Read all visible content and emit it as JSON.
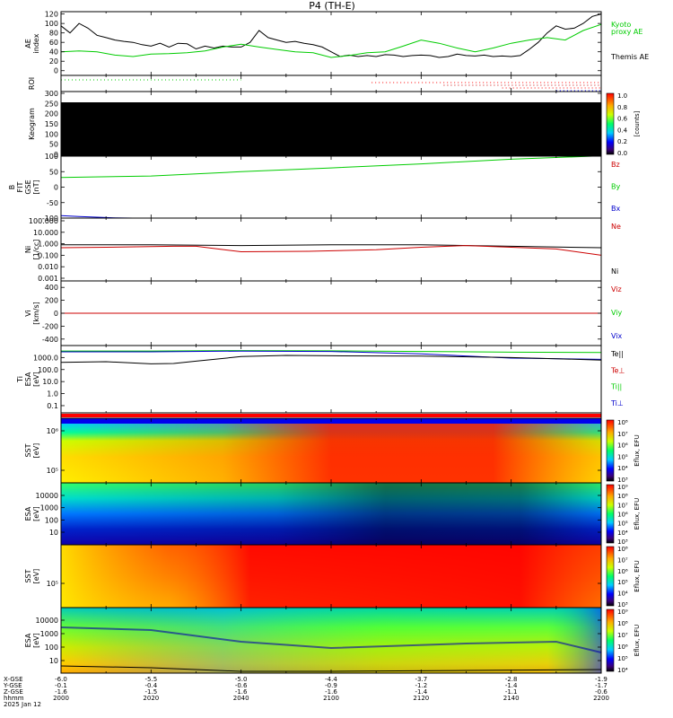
{
  "title": "P4 (TH-E)",
  "chart_data": {
    "type": "multi-panel",
    "xaxis": {
      "ticks": [
        {
          "hhmm": "2000",
          "x": "-6.0",
          "y": "-0.1",
          "z": "-1.6"
        },
        {
          "hhmm": "2020",
          "x": "-5.5",
          "y": "-0.4",
          "z": "-1.5"
        },
        {
          "hhmm": "2040",
          "x": "-5.0",
          "y": "-0.6",
          "z": "-1.6"
        },
        {
          "hhmm": "2100",
          "x": "-4.4",
          "y": "-0.9",
          "z": "-1.6"
        },
        {
          "hhmm": "2120",
          "x": "-3.7",
          "y": "-1.2",
          "z": "-1.4"
        },
        {
          "hhmm": "2140",
          "x": "-2.8",
          "y": "-1.4",
          "z": "-1.1"
        },
        {
          "hhmm": "2200",
          "x": "-1.9",
          "y": "-1.7",
          "z": "-0.6"
        }
      ],
      "row_labels": [
        "X-GSE",
        "Y-GSE",
        "Z-GSE",
        "hhmm"
      ],
      "date": "2025 Jan 12"
    },
    "panels": [
      {
        "id": "ae",
        "ylabel": "AE index",
        "yticks": [
          "120",
          "100",
          "80",
          "60",
          "40",
          "20",
          "0"
        ],
        "ylim": [
          -10,
          125
        ],
        "legend": [
          {
            "text": "Kyoto",
            "color": "#00cc00"
          },
          {
            "text": "proxy AE",
            "color": "#00cc00"
          },
          {
            "text": "Themis AE",
            "color": "#000000"
          }
        ],
        "series": [
          {
            "color": "#000000",
            "x": [
              0,
              2,
              4,
              6,
              8,
              10,
              12,
              14,
              16,
              18,
              20,
              22,
              24,
              26,
              28,
              30,
              32,
              34,
              36,
              38,
              40,
              42,
              44,
              46,
              48,
              50,
              52,
              54,
              56,
              58,
              60,
              62,
              64,
              66,
              68,
              70,
              72,
              74,
              76,
              78,
              80,
              82,
              84,
              86,
              88,
              90,
              92,
              94,
              96,
              98,
              100,
              102,
              104,
              106,
              108,
              110,
              112,
              114,
              116,
              118,
              120
            ],
            "y": [
              95,
              80,
              100,
              90,
              75,
              70,
              65,
              62,
              60,
              55,
              52,
              58,
              50,
              58,
              57,
              46,
              52,
              48,
              52,
              50,
              50,
              60,
              85,
              70,
              65,
              60,
              62,
              58,
              55,
              50,
              40,
              30,
              33,
              30,
              32,
              30,
              34,
              33,
              30,
              32,
              33,
              32,
              28,
              30,
              35,
              32,
              31,
              33,
              30,
              31,
              30,
              32,
              45,
              60,
              80,
              95,
              88,
              90,
              100,
              115,
              120
            ]
          },
          {
            "color": "#00cc00",
            "x": [
              0,
              4,
              8,
              12,
              16,
              20,
              24,
              28,
              32,
              36,
              40,
              44,
              48,
              52,
              56,
              60,
              64,
              68,
              72,
              76,
              80,
              84,
              88,
              92,
              96,
              100,
              104,
              108,
              112,
              116,
              120
            ],
            "y": [
              40,
              42,
              40,
              33,
              30,
              35,
              36,
              38,
              42,
              50,
              56,
              50,
              45,
              40,
              38,
              28,
              32,
              38,
              40,
              52,
              65,
              58,
              48,
              40,
              48,
              58,
              65,
              70,
              65,
              85,
              98
            ]
          }
        ]
      },
      {
        "id": "roi",
        "ylabel": "ROI",
        "dot_rows": [
          {
            "color": "#00cc00",
            "start": 0,
            "end": 40
          },
          {
            "color": "#ff0000",
            "start": 69,
            "end": 120
          },
          {
            "color": "#cc0000",
            "start": 85,
            "end": 120
          },
          {
            "color": "#ff0000",
            "start": 98,
            "end": 120
          },
          {
            "color": "#0000ff",
            "start": 110,
            "end": 120
          }
        ]
      },
      {
        "id": "keogram",
        "ylabel": "Keogram",
        "yticks": [
          "300",
          "250",
          "200",
          "150",
          "100",
          "50",
          "0"
        ],
        "colorbar": {
          "label": "[counts]",
          "ticks": [
            "1.0",
            "0.8",
            "0.6",
            "0.4",
            "0.2",
            "0.0"
          ]
        }
      },
      {
        "id": "bfield",
        "ylabel": "B FIT GSE [nT]",
        "yticks": [
          "100",
          "50",
          "0",
          "-50",
          "-100"
        ],
        "ylim": [
          -100,
          100
        ],
        "legend": [
          {
            "text": "Bz",
            "color": "#cc0000"
          },
          {
            "text": "By",
            "color": "#00cc00"
          },
          {
            "text": "Bx",
            "color": "#0000cc"
          }
        ],
        "series": [
          {
            "color": "#00cc00",
            "x": [
              0,
              20,
              40,
              60,
              80,
              100,
              118
            ],
            "y": [
              31,
              36,
              50,
              62,
              75,
              90,
              100
            ]
          },
          {
            "color": "#0000cc",
            "x": [
              0,
              4,
              8,
              12,
              16,
              18
            ],
            "y": [
              -92,
              -95,
              -97,
              -99,
              -100,
              -101
            ]
          }
        ]
      },
      {
        "id": "density",
        "ylabel": "Ni [1/cc]",
        "yticks": [
          "100.000",
          "10.000",
          "1.000",
          "0.100",
          "0.010",
          "0.001"
        ],
        "log": true,
        "legend": [
          {
            "text": "Ne",
            "color": "#cc0000"
          },
          {
            "text": "Ni",
            "color": "#000000"
          }
        ],
        "series": [
          {
            "color": "#000000",
            "x": [
              0,
              20,
              40,
              60,
              80,
              100,
              120
            ],
            "y": [
              0.8,
              0.8,
              0.7,
              0.8,
              0.8,
              0.6,
              0.45
            ]
          },
          {
            "color": "#cc0000",
            "x": [
              0,
              10,
              25,
              30,
              40,
              55,
              70,
              80,
              90,
              100,
              110,
              120
            ],
            "y": [
              0.45,
              0.5,
              0.6,
              0.6,
              0.2,
              0.22,
              0.3,
              0.5,
              0.7,
              0.5,
              0.35,
              0.1
            ]
          }
        ]
      },
      {
        "id": "velocity",
        "ylabel": "Vi [km/s]",
        "yticks": [
          "400",
          "200",
          "0",
          "-200",
          "-400"
        ],
        "ylim": [
          -500,
          500
        ],
        "legend": [
          {
            "text": "Viz",
            "color": "#cc0000"
          },
          {
            "text": "Viy",
            "color": "#00cc00"
          },
          {
            "text": "Vix",
            "color": "#0000cc"
          }
        ],
        "series": [
          {
            "color": "#cc0000",
            "x": [
              0,
              120
            ],
            "y": [
              0,
              0
            ]
          }
        ]
      },
      {
        "id": "temperature",
        "ylabel": "Ti ESA [eV]",
        "yticks": [
          "1000.0",
          "100.0",
          "10.0",
          "1.0",
          "0.1"
        ],
        "log": true,
        "legend": [
          {
            "text": "Te||",
            "color": "#000000"
          },
          {
            "text": "Te⊥",
            "color": "#cc0000"
          },
          {
            "text": "Ti||",
            "color": "#00cc00"
          },
          {
            "text": "Ti⊥",
            "color": "#0000cc"
          }
        ],
        "series": [
          {
            "color": "#00cc00",
            "x": [
              0,
              20,
              40,
              60,
              80,
              100,
              120
            ],
            "y": [
              3500,
              3500,
              3800,
              3600,
              3200,
              2800,
              2600
            ]
          },
          {
            "color": "#0000cc",
            "x": [
              0,
              20,
              40,
              60,
              80,
              100,
              120
            ],
            "y": [
              3000,
              3000,
              3400,
              3200,
              2000,
              900,
              700
            ]
          },
          {
            "color": "#000000",
            "x": [
              0,
              10,
              20,
              25,
              30,
              40,
              50,
              60,
              80,
              100,
              110,
              120
            ],
            "y": [
              400,
              450,
              300,
              320,
              500,
              1200,
              1500,
              1400,
              1300,
              1000,
              800,
              600
            ]
          }
        ]
      },
      {
        "id": "flagbar"
      },
      {
        "id": "sst_ion",
        "ylabel": "SST [eV]",
        "yticks": [
          "10⁶",
          "10⁵"
        ],
        "colorbar": {
          "label": "Eflux, EFU",
          "ticks": [
            "10⁸",
            "10⁷",
            "10⁶",
            "10⁵",
            "10⁴",
            "10³"
          ]
        }
      },
      {
        "id": "esa_ion",
        "ylabel": "ESA [eV]",
        "yticks": [
          "10000",
          "1000",
          "100",
          "10"
        ],
        "colorbar": {
          "label": "Eflux, EFU",
          "ticks": [
            "10⁹",
            "10⁸",
            "10⁷",
            "10⁶",
            "10⁵",
            "10⁴",
            "10³"
          ]
        }
      },
      {
        "id": "sst_electron",
        "ylabel": "SST [eV]",
        "yticks": [
          "10⁵"
        ],
        "colorbar": {
          "label": "Eflux, EFU",
          "ticks": [
            "10⁸",
            "10⁷",
            "10⁶",
            "10⁵",
            "10⁴",
            "10³"
          ]
        }
      },
      {
        "id": "esa_electron",
        "ylabel": "ESA [eV]",
        "yticks": [
          "10000",
          "1000",
          "100",
          "10"
        ],
        "colorbar": {
          "label": "Eflux, EFU",
          "ticks": [
            "10⁹",
            "10⁸",
            "10⁷",
            "10⁶",
            "10⁵",
            "10⁴"
          ]
        }
      }
    ]
  }
}
